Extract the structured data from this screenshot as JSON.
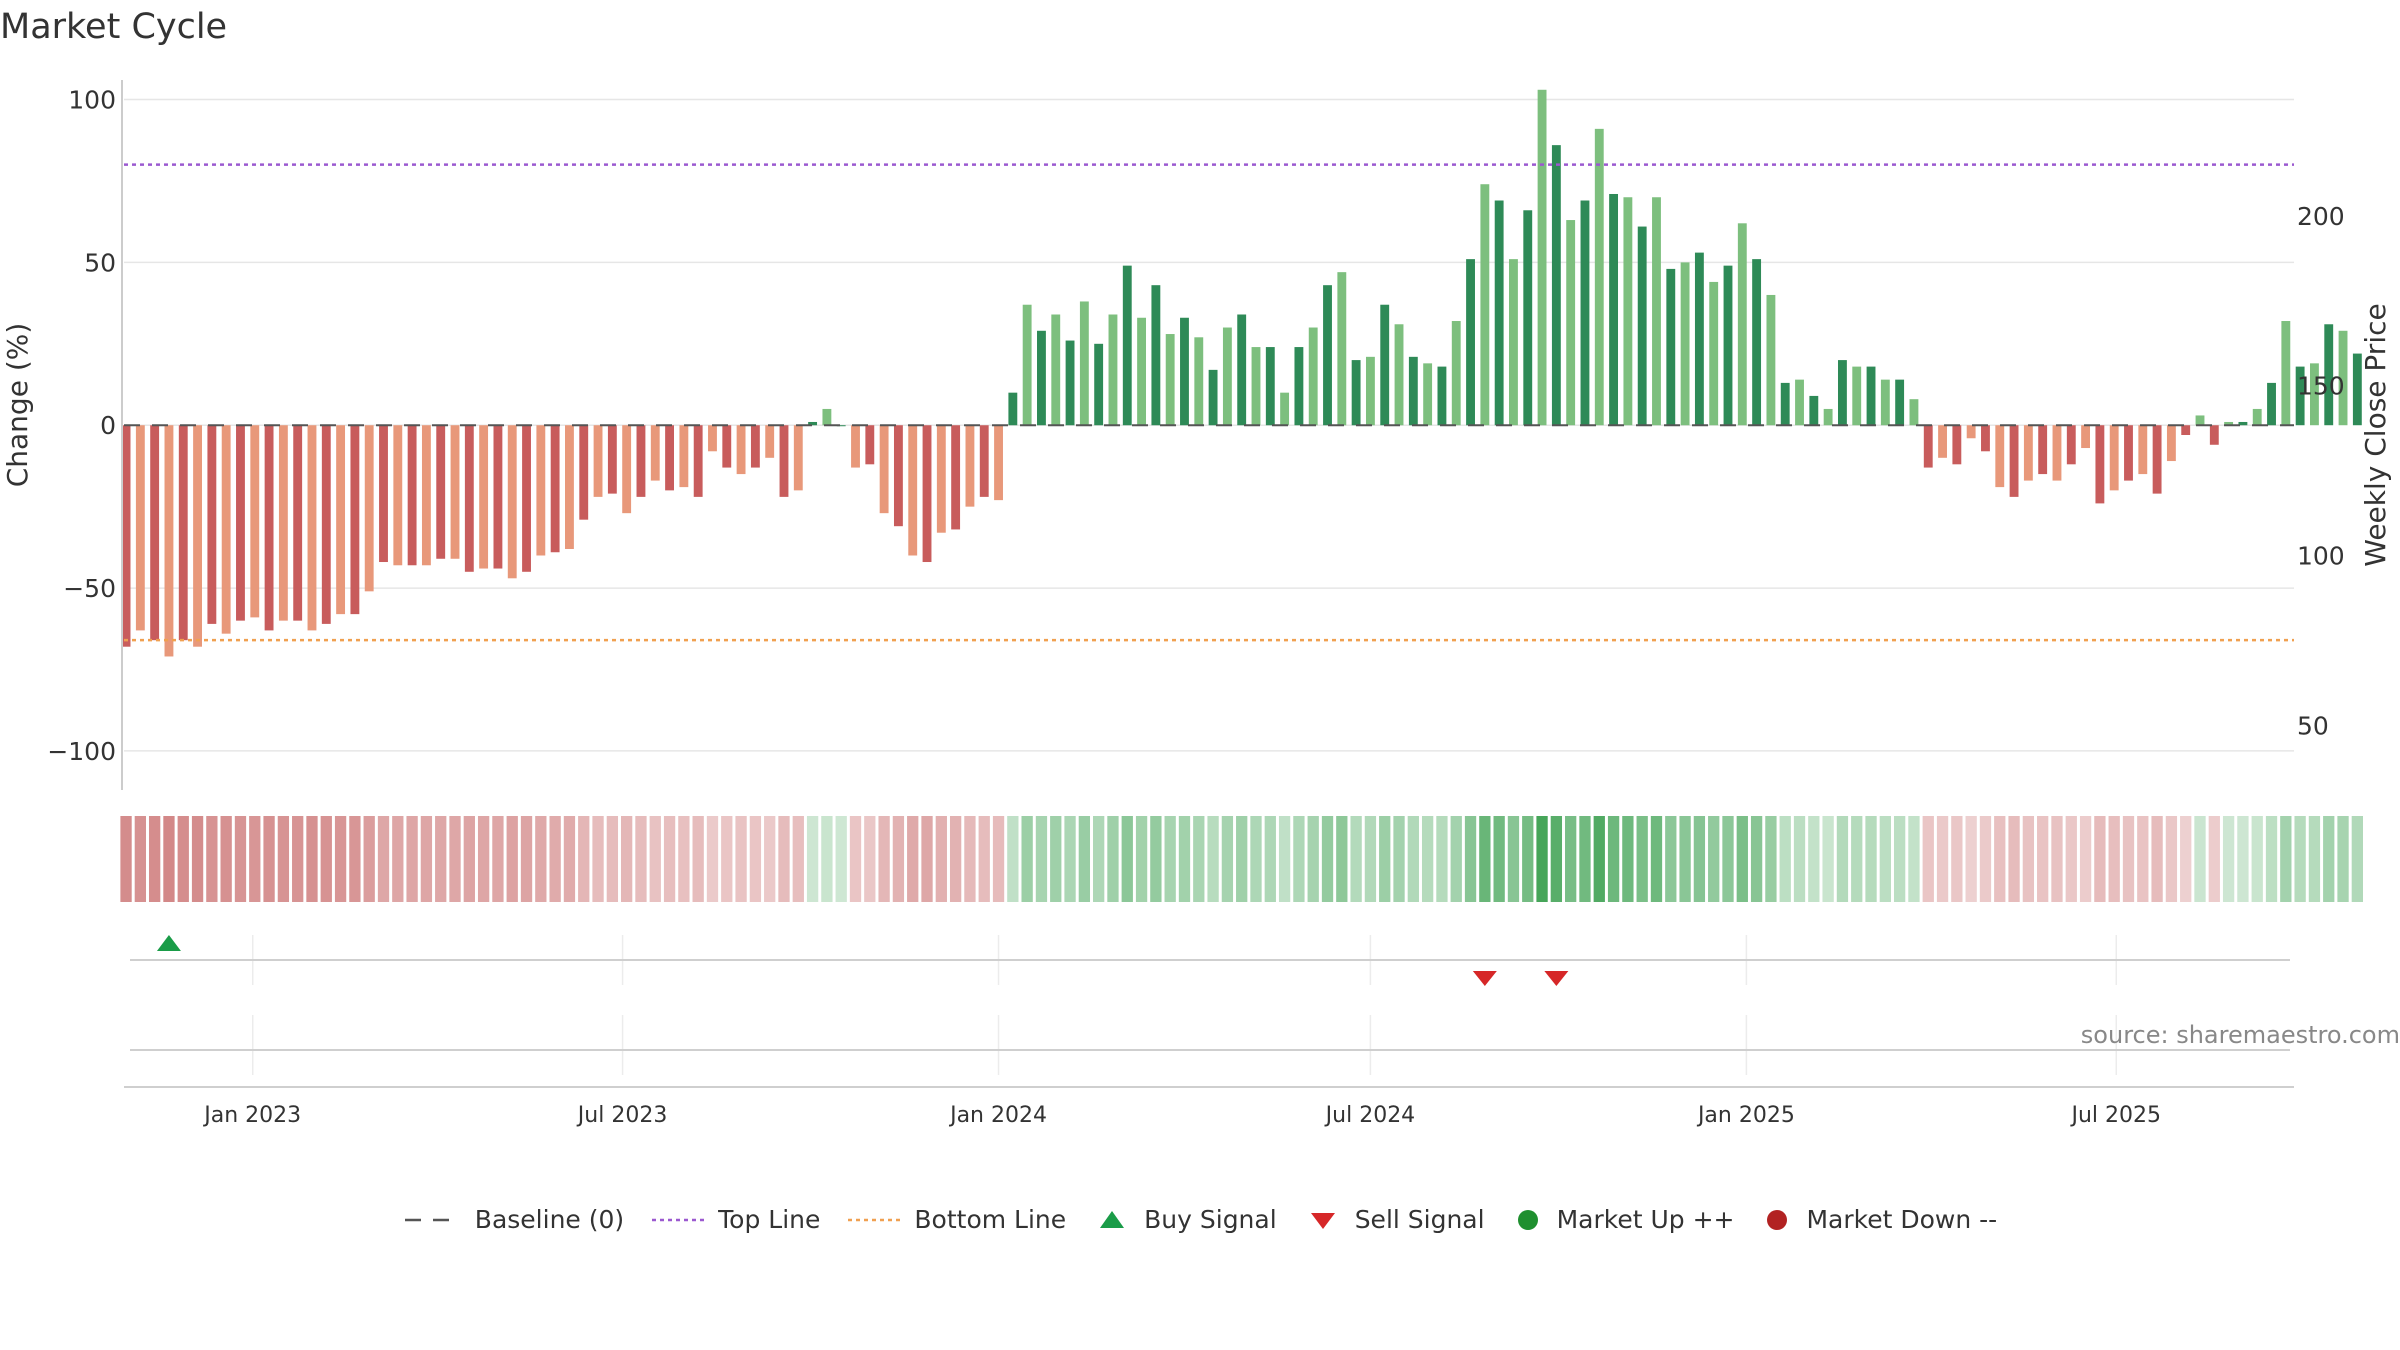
{
  "chart_data": {
    "type": "bar",
    "title": "Market Cycle",
    "ylabel": "Change (%)",
    "ylabel_right": "Weekly Close Price",
    "ylim": [
      -112,
      106
    ],
    "yticks": [
      100,
      50,
      0,
      -50,
      -100
    ],
    "ytick_labels": [
      "100",
      "50",
      "0",
      "−50",
      "−100"
    ],
    "right_ylim": [
      31,
      240
    ],
    "right_yticks": [
      200,
      150,
      100,
      50
    ],
    "right_ytick_labels": [
      "200",
      "150",
      "100",
      "50"
    ],
    "xlim": [
      "2022-10-30",
      "2025-09-26"
    ],
    "xticks": [
      "2023-01-01",
      "2023-07-01",
      "2024-01-01",
      "2024-07-01",
      "2025-01-01",
      "2025-07-01"
    ],
    "xtick_labels": [
      "Jan 2023",
      "Jul 2023",
      "Jan 2024",
      "Jul 2024",
      "Jan 2025",
      "Jul 2025"
    ],
    "start_date": "2022-10-31",
    "series": [
      {
        "name": "Change (%)",
        "values": [
          -68,
          -63,
          -66,
          -71,
          -66,
          -68,
          -61,
          -64,
          -60,
          -59,
          -63,
          -60,
          -60,
          -63,
          -61,
          -58,
          -58,
          -51,
          -42,
          -43,
          -43,
          -43,
          -41,
          -41,
          -45,
          -44,
          -44,
          -47,
          -45,
          -40,
          -39,
          -38,
          -29,
          -22,
          -21,
          -27,
          -22,
          -17,
          -20,
          -19,
          -22,
          -8,
          -13,
          -15,
          -13,
          -10,
          -22,
          -20,
          1,
          5,
          0,
          -13,
          -12,
          -27,
          -31,
          -40,
          -42,
          -33,
          -32,
          -25,
          -22,
          -23,
          10,
          37,
          29,
          34,
          26,
          38,
          25,
          34,
          49,
          33,
          43,
          28,
          33,
          27,
          17,
          30,
          34,
          24,
          24,
          10,
          24,
          30,
          43,
          47,
          20,
          21,
          37,
          31,
          21,
          19,
          18,
          32,
          51,
          74,
          69,
          51,
          66,
          103,
          86,
          63,
          69,
          91,
          71,
          70,
          61,
          70,
          48,
          50,
          53,
          44,
          49,
          62,
          51,
          40,
          13,
          14,
          9,
          5,
          20,
          18,
          18,
          14,
          14,
          8,
          -13,
          -10,
          -12,
          -4,
          -8,
          -19,
          -22,
          -17,
          -15,
          -17,
          -12,
          -7,
          -24,
          -20,
          -17,
          -15,
          -21,
          -11,
          -3,
          3,
          -6,
          1,
          1,
          5,
          13,
          32,
          18,
          19,
          31,
          29,
          22
        ]
      }
    ],
    "baseline": 0,
    "top_line": 80,
    "bottom_line": -66,
    "buy_signals": [
      "2022-11-21"
    ],
    "sell_signals": [
      "2024-08-26",
      "2024-09-30"
    ],
    "heat_strip": "per-week color band matching bar sign and magnitude",
    "source_text": "source: sharemaestro.com",
    "colors": {
      "positive_strong": "#2e8a57",
      "positive_light": "#7dbf7e",
      "negative_strong": "#c85c5c",
      "negative_light": "#e8987a",
      "top_line": "#9b59d0",
      "bottom_line": "#f0a050",
      "buy": "#1a9c48",
      "sell": "#d62728",
      "market_up": "#1f8f2f",
      "market_down": "#b22222",
      "baseline": "#555555",
      "grid": "#e6e6e6"
    },
    "grid": true,
    "legend_position": "bottom-center"
  },
  "legend": {
    "baseline": "Baseline (0)",
    "top_line": "Top Line",
    "bottom_line": "Bottom Line",
    "buy": "Buy Signal",
    "sell": "Sell Signal",
    "up": "Market Up ++",
    "down": "Market Down --"
  }
}
